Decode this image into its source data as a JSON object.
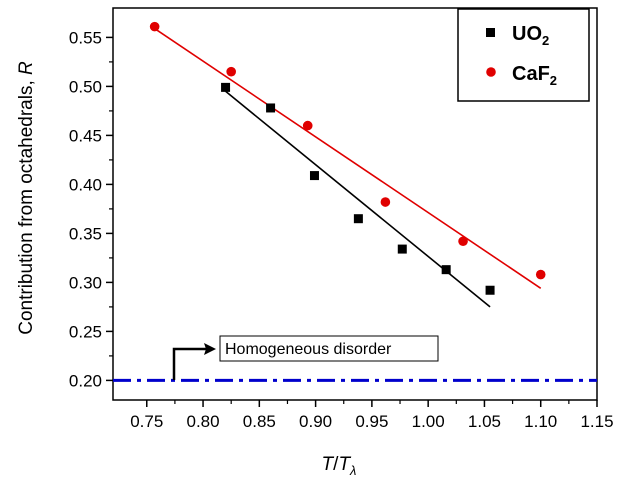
{
  "chart_data": {
    "type": "scatter",
    "xlabel": {
      "main": "T",
      "sep": "/",
      "main2": "T",
      "sub": "λ"
    },
    "ylabel": {
      "main": "Contribution from octahedrals, ",
      "var": "R"
    },
    "xlim": [
      0.72,
      1.15
    ],
    "ylim": [
      0.18,
      0.58
    ],
    "xticks": [
      "0.75",
      "0.80",
      "0.85",
      "0.90",
      "0.95",
      "1.00",
      "1.05",
      "1.10",
      "1.15"
    ],
    "yticks": [
      "0.20",
      "0.25",
      "0.30",
      "0.35",
      "0.40",
      "0.45",
      "0.50",
      "0.55"
    ],
    "grid": false,
    "legend_position": "top-right",
    "series": [
      {
        "name": "UO2",
        "legend": {
          "main": "UO",
          "sub": "2"
        },
        "marker": "square",
        "color": "#000000",
        "x": [
          0.82,
          0.86,
          0.899,
          0.938,
          0.977,
          1.016,
          1.055
        ],
        "y": [
          0.499,
          0.478,
          0.409,
          0.365,
          0.334,
          0.313,
          0.292
        ],
        "fit": {
          "x": [
            0.82,
            1.055
          ],
          "y": [
            0.495,
            0.275
          ]
        }
      },
      {
        "name": "CaF2",
        "legend": {
          "main": "CaF",
          "sub": "2"
        },
        "marker": "circle",
        "color": "#e00000",
        "x": [
          0.757,
          0.825,
          0.893,
          0.962,
          1.031,
          1.1
        ],
        "y": [
          0.561,
          0.515,
          0.46,
          0.382,
          0.342,
          0.308
        ],
        "fit": {
          "x": [
            0.757,
            1.1
          ],
          "y": [
            0.559,
            0.294
          ]
        }
      }
    ],
    "reference_line": {
      "y": 0.2,
      "style": "dash-dot",
      "color": "#0000cc",
      "label": "Homogeneous disorder"
    }
  }
}
